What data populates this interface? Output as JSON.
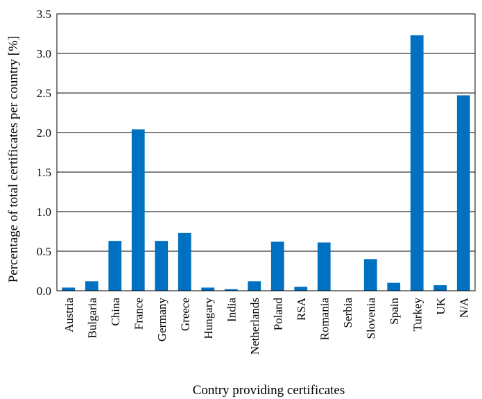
{
  "chart_data": {
    "type": "bar",
    "title": "",
    "xlabel": "Contry providing certificates",
    "ylabel": "Percentage of total certificates per country [%]",
    "ylim": [
      0,
      3.5
    ],
    "yticks": [
      "0.0",
      "0.5",
      "1.0",
      "1.5",
      "2.0",
      "2.5",
      "3.0",
      "3.5"
    ],
    "grid": true,
    "categories": [
      "Austria",
      "Bulgaria",
      "China",
      "France",
      "Germany",
      "Greece",
      "Hungary",
      "India",
      "Netherlands",
      "Poland",
      "RSA",
      "Romania",
      "Serbia",
      "Slovenia",
      "Spain",
      "Turkey",
      "UK",
      "N/A"
    ],
    "values": [
      0.04,
      0.12,
      0.63,
      2.04,
      0.63,
      0.73,
      0.04,
      0.02,
      0.12,
      0.62,
      0.05,
      0.61,
      0.0,
      0.4,
      0.1,
      3.23,
      0.07,
      2.47
    ],
    "bar_color": "#0070C0"
  }
}
